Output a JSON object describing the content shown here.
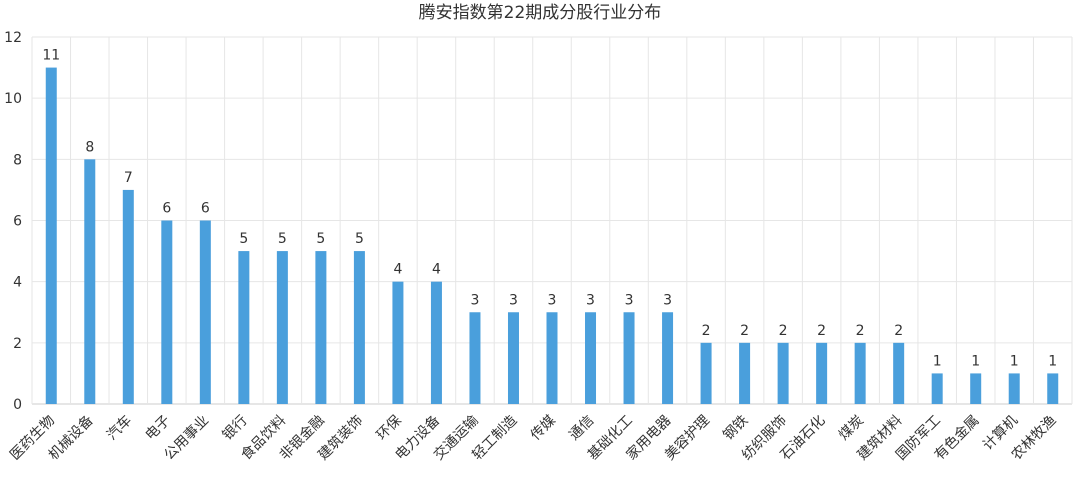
{
  "chart_data": {
    "type": "bar",
    "title": "腾安指数第22期成分股行业分布",
    "categories": [
      "医药生物",
      "机械设备",
      "汽车",
      "电子",
      "公用事业",
      "银行",
      "食品饮料",
      "非银金融",
      "建筑装饰",
      "环保",
      "电力设备",
      "交通运输",
      "轻工制造",
      "传媒",
      "通信",
      "基础化工",
      "家用电器",
      "美容护理",
      "钢铁",
      "纺织服饰",
      "石油石化",
      "煤炭",
      "建筑材料",
      "国防军工",
      "有色金属",
      "计算机",
      "农林牧渔"
    ],
    "values": [
      11,
      8,
      7,
      6,
      6,
      5,
      5,
      5,
      5,
      4,
      4,
      3,
      3,
      3,
      3,
      3,
      3,
      2,
      2,
      2,
      2,
      2,
      2,
      1,
      1,
      1,
      1
    ],
    "ylim": [
      0,
      12
    ],
    "yticks": [
      0,
      2,
      4,
      6,
      8,
      10,
      12
    ],
    "xlabel": "",
    "ylabel": "",
    "grid": true,
    "legend": "none",
    "bar_color": "#4a9fdc",
    "grid_color": "#e6e6e6",
    "axis_color": "#cccccc",
    "text_color": "#333333"
  }
}
